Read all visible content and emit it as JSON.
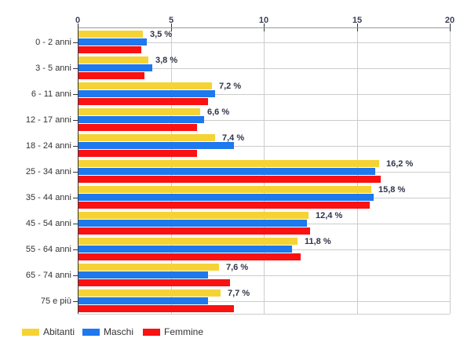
{
  "chart_data": {
    "type": "bar",
    "orientation": "horizontal",
    "title": "",
    "categories": [
      "0 - 2 anni",
      "3 - 5 anni",
      "6 - 11 anni",
      "12 - 17 anni",
      "18 - 24 anni",
      "25 - 34 anni",
      "35 - 44 anni",
      "45 - 54 anni",
      "55 - 64 anni",
      "65 - 74 anni",
      "75 e più"
    ],
    "series": [
      {
        "name": "Abitanti",
        "color": "#F6D335",
        "values": [
          3.5,
          3.8,
          7.2,
          6.6,
          7.4,
          16.2,
          15.8,
          12.4,
          11.8,
          7.6,
          7.7
        ],
        "data_labels": [
          "3,5 %",
          "3,8 %",
          "7,2 %",
          "6,6 %",
          "7,4 %",
          "16,2 %",
          "15,8 %",
          "12,4 %",
          "11,8 %",
          "7,6 %",
          "7,7 %"
        ]
      },
      {
        "name": "Maschi",
        "color": "#1E78EE",
        "values": [
          3.7,
          4.0,
          7.4,
          6.8,
          8.4,
          16.0,
          15.9,
          12.3,
          11.5,
          7.0,
          7.0
        ]
      },
      {
        "name": "Femmine",
        "color": "#FA1111",
        "values": [
          3.4,
          3.6,
          7.0,
          6.4,
          6.4,
          16.3,
          15.7,
          12.5,
          12.0,
          8.2,
          8.4
        ]
      }
    ],
    "x_axis": {
      "min": 0,
      "max": 20,
      "ticks": [
        0,
        5,
        10,
        15,
        20
      ],
      "tick_labels": [
        "0",
        "5",
        "10",
        "15",
        "20"
      ]
    },
    "grid": true,
    "legend": {
      "position": "bottom-left",
      "entries": [
        "Abitanti",
        "Maschi",
        "Femmine"
      ]
    }
  },
  "colors": {
    "background": "#FFFFFF",
    "grid": "#CCCCCC",
    "axis_line_top": "#999999",
    "axis_line_left": "#333333",
    "tick_mark": "#333333",
    "category_text": "#333333",
    "tick_text": "#3C405A",
    "value_text": "#2F3348"
  }
}
